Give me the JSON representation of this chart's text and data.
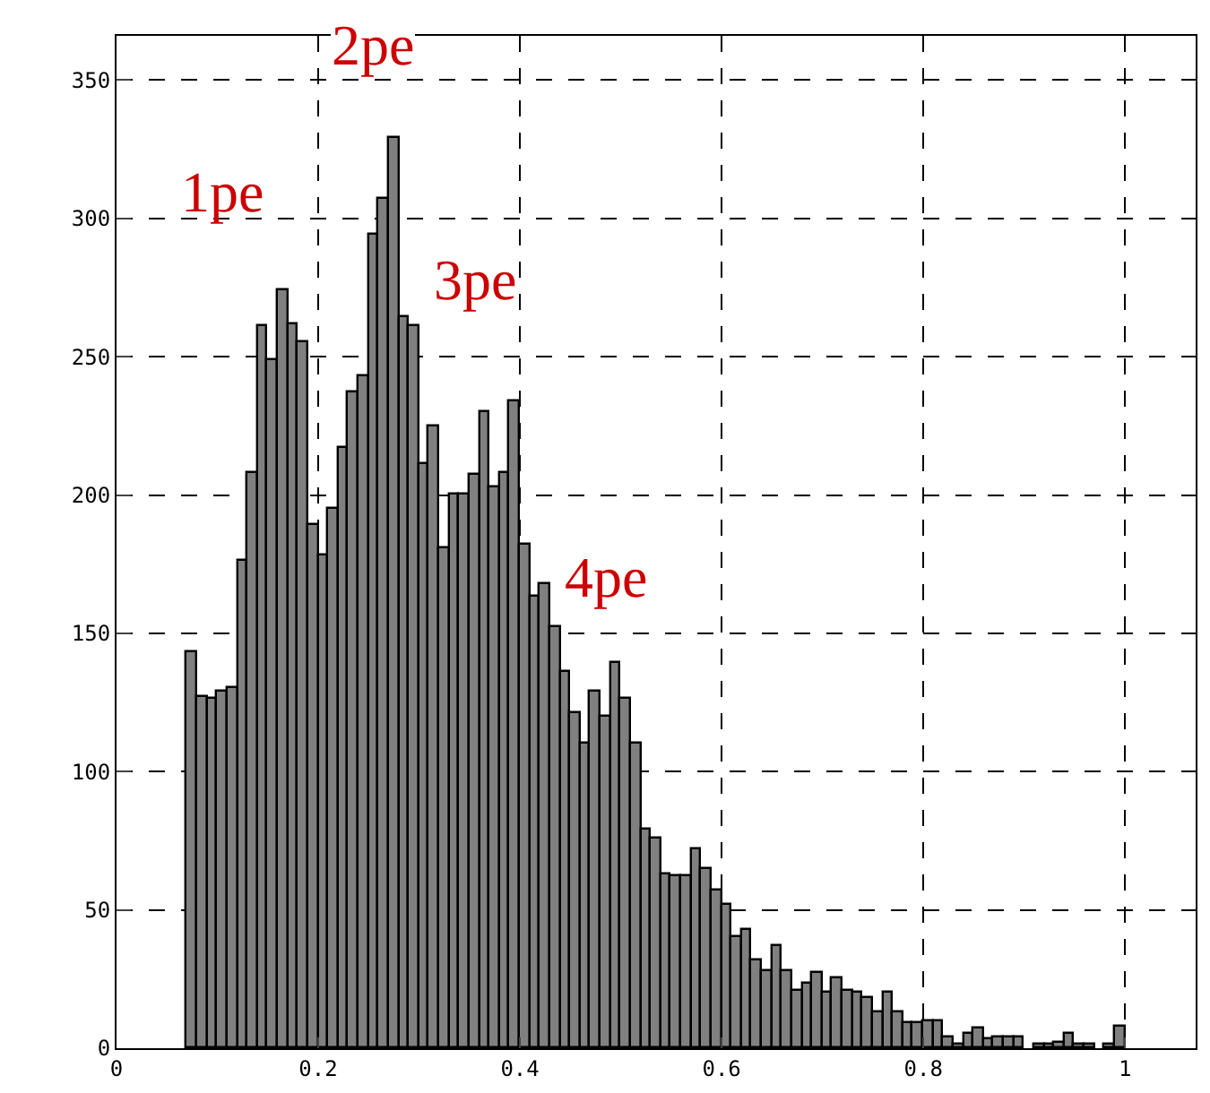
{
  "chart_data": {
    "type": "histogram",
    "bins": [
      0.07,
      0.08,
      0.09,
      0.1,
      0.11,
      0.12,
      0.13,
      0.14,
      0.15,
      0.16,
      0.17,
      0.18,
      0.19,
      0.2,
      0.21,
      0.22,
      0.23,
      0.24,
      0.25,
      0.26,
      0.27,
      0.28,
      0.29,
      0.3,
      0.31,
      0.32,
      0.33,
      0.34,
      0.35,
      0.36,
      0.37,
      0.38,
      0.39,
      0.4,
      0.41,
      0.42,
      0.43,
      0.44,
      0.45,
      0.46,
      0.47,
      0.48,
      0.49,
      0.5,
      0.51,
      0.52,
      0.53,
      0.54,
      0.55,
      0.56,
      0.57,
      0.58,
      0.59,
      0.6,
      0.61,
      0.62,
      0.63,
      0.64,
      0.65,
      0.66,
      0.67,
      0.68,
      0.69,
      0.7,
      0.71,
      0.72,
      0.73,
      0.74,
      0.75,
      0.76,
      0.77,
      0.78,
      0.79,
      0.8,
      0.81,
      0.82,
      0.83,
      0.84,
      0.85,
      0.86,
      0.87,
      0.88,
      0.89,
      0.9,
      0.91,
      0.92,
      0.93,
      0.94,
      0.95,
      0.96,
      0.97,
      0.98,
      0.99,
      1.0
    ],
    "values": [
      143,
      127,
      126,
      129,
      130,
      176,
      208,
      261,
      249,
      274,
      262,
      255,
      189,
      178,
      195,
      217,
      237,
      243,
      294,
      307,
      329,
      264,
      261,
      211,
      225,
      181,
      200,
      200,
      207,
      230,
      203,
      208,
      234,
      182,
      163,
      168,
      152,
      136,
      121,
      110,
      129,
      120,
      139,
      126,
      110,
      79,
      76,
      63,
      62,
      62,
      72,
      65,
      57,
      52,
      40,
      43,
      32,
      28,
      37,
      28,
      21,
      23,
      27,
      20,
      25,
      21,
      20,
      18,
      13,
      20,
      13,
      9,
      9,
      10,
      10,
      4,
      1,
      5,
      7,
      3,
      4,
      4,
      4,
      0,
      1,
      1,
      2,
      5,
      1,
      1,
      0,
      1,
      8
    ],
    "color": "#808080",
    "xlim": [
      0,
      1.07
    ],
    "xticks": [
      0,
      0.2,
      0.4,
      0.6,
      0.8,
      1
    ],
    "ylim": [
      0,
      366
    ],
    "yticks": [
      0,
      50,
      100,
      150,
      200,
      250,
      300,
      350
    ],
    "grid": true,
    "annotations": [
      "1pe",
      "2pe",
      "3pe",
      "4pe"
    ]
  }
}
